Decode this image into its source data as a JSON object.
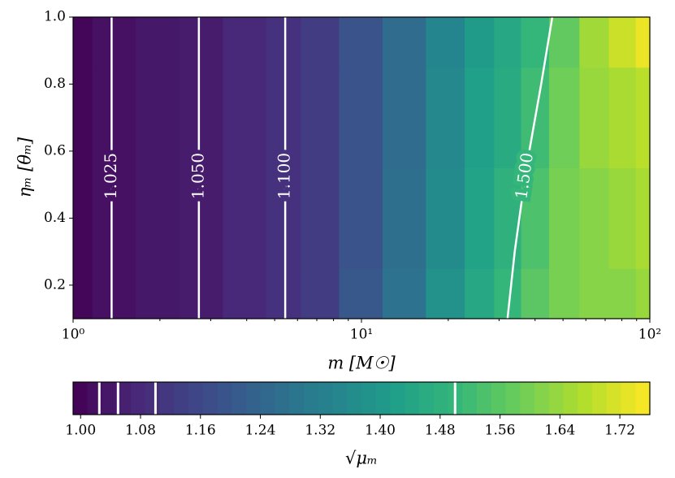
{
  "chart_data": {
    "type": "contour",
    "x_label": "m [M☉]",
    "y_label": "ηₘ [θₘ]",
    "colorbar_label": "√μₘ",
    "xscale": "log",
    "xlim": [
      1,
      100
    ],
    "ylim": [
      0.1,
      1.0
    ],
    "xticks": [
      {
        "value": 1,
        "label": "10⁰"
      },
      {
        "value": 10,
        "label": "10¹"
      },
      {
        "value": 100,
        "label": "10²"
      }
    ],
    "yticks": [
      0.2,
      0.4,
      0.6,
      0.8,
      {
        "value": 1.0,
        "label": "1.0"
      }
    ],
    "x": [
      1,
      1.36,
      2,
      2.73,
      4,
      5.44,
      7,
      10,
      14,
      20,
      26,
      32,
      40,
      50,
      65,
      80,
      100
    ],
    "y": [
      0.1,
      0.4,
      0.7,
      1.0
    ],
    "z": [
      [
        1.0,
        1.025,
        1.04,
        1.05,
        1.075,
        1.1,
        1.13,
        1.2,
        1.28,
        1.38,
        1.45,
        1.5,
        1.56,
        1.6,
        1.62,
        1.62,
        1.64
      ],
      [
        1.0,
        1.025,
        1.04,
        1.05,
        1.075,
        1.1,
        1.13,
        1.19,
        1.27,
        1.36,
        1.43,
        1.48,
        1.54,
        1.6,
        1.62,
        1.64,
        1.66
      ],
      [
        1.0,
        1.025,
        1.04,
        1.05,
        1.075,
        1.1,
        1.13,
        1.19,
        1.26,
        1.35,
        1.42,
        1.46,
        1.52,
        1.59,
        1.64,
        1.66,
        1.68
      ],
      [
        1.0,
        1.025,
        1.04,
        1.05,
        1.075,
        1.1,
        1.13,
        1.19,
        1.26,
        1.34,
        1.41,
        1.45,
        1.5,
        1.57,
        1.65,
        1.7,
        1.74
      ]
    ],
    "contours": [
      {
        "level": 1.025,
        "x": [
          1.36,
          1.36
        ],
        "y": [
          0.1,
          1.0
        ]
      },
      {
        "level": {
          "value": 1.05,
          "label": "1.050"
        },
        "x": [
          2.73,
          2.73
        ],
        "y": [
          0.1,
          1.0
        ]
      },
      {
        "level": {
          "value": 1.1,
          "label": "1.100"
        },
        "x": [
          5.44,
          5.44
        ],
        "y": [
          0.1,
          1.0
        ]
      },
      {
        "level": {
          "value": 1.5,
          "label": "1.500"
        },
        "x": [
          32.1,
          34,
          37.3,
          42,
          45.9
        ],
        "y": [
          0.1,
          0.3,
          0.55,
          0.8,
          1.0
        ]
      }
    ],
    "contour_color": "#ffffff",
    "colormap": "viridis",
    "clim": [
      0.99,
      1.76
    ],
    "cticks": [
      {
        "value": 1.0,
        "label": "1.00"
      },
      {
        "value": 1.08,
        "label": "1.08"
      },
      {
        "value": 1.16,
        "label": "1.16"
      },
      {
        "value": 1.24,
        "label": "1.24"
      },
      {
        "value": 1.32,
        "label": "1.32"
      },
      {
        "value": 1.4,
        "label": "1.40"
      },
      {
        "value": 1.48,
        "label": "1.48"
      },
      {
        "value": 1.56,
        "label": "1.56"
      },
      {
        "value": 1.64,
        "label": "1.64"
      },
      {
        "value": 1.72,
        "label": "1.72"
      }
    ]
  }
}
